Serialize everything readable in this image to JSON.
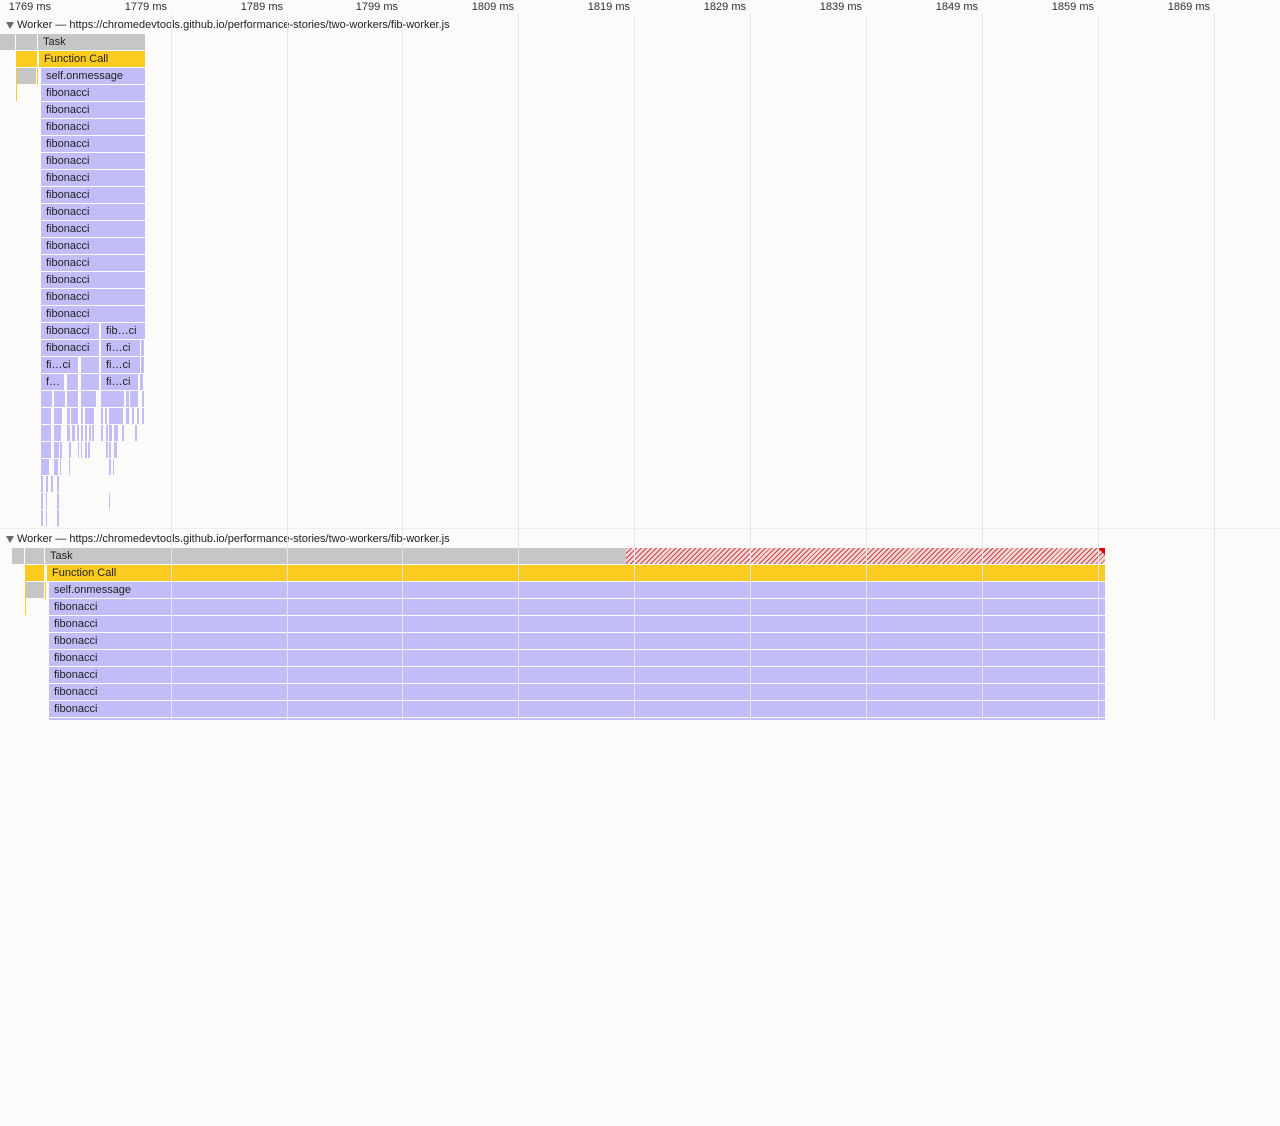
{
  "ruler": {
    "ticks": [
      "1769 ms",
      "1779 ms",
      "1789 ms",
      "1799 ms",
      "1809 ms",
      "1819 ms",
      "1829 ms",
      "1839 ms",
      "1849 ms",
      "1859 ms",
      "1869 ms"
    ]
  },
  "tracks": [
    {
      "title": "Worker — https://chromedevtools.github.io/performance-stories/two-workers/fib-worker.js",
      "events": {
        "task": "Task",
        "function_call": "Function Call",
        "onmessage": "self.onmessage",
        "fib": "fibonacci",
        "fib_short_1": "fib…ci",
        "fib_short_2": "fi…ci",
        "fib_short_3": "f…"
      }
    },
    {
      "title": "Worker — https://chromedevtools.github.io/performance-stories/two-workers/fib-worker.js",
      "events": {
        "task": "Task",
        "function_call": "Function Call",
        "onmessage": "self.onmessage",
        "fib": "fibonacci"
      }
    }
  ],
  "colors": {
    "task": "#c6c6c6",
    "function_call": "#fbcb20",
    "script": "#c2bdf6",
    "long_task_marker": "#e00000"
  }
}
